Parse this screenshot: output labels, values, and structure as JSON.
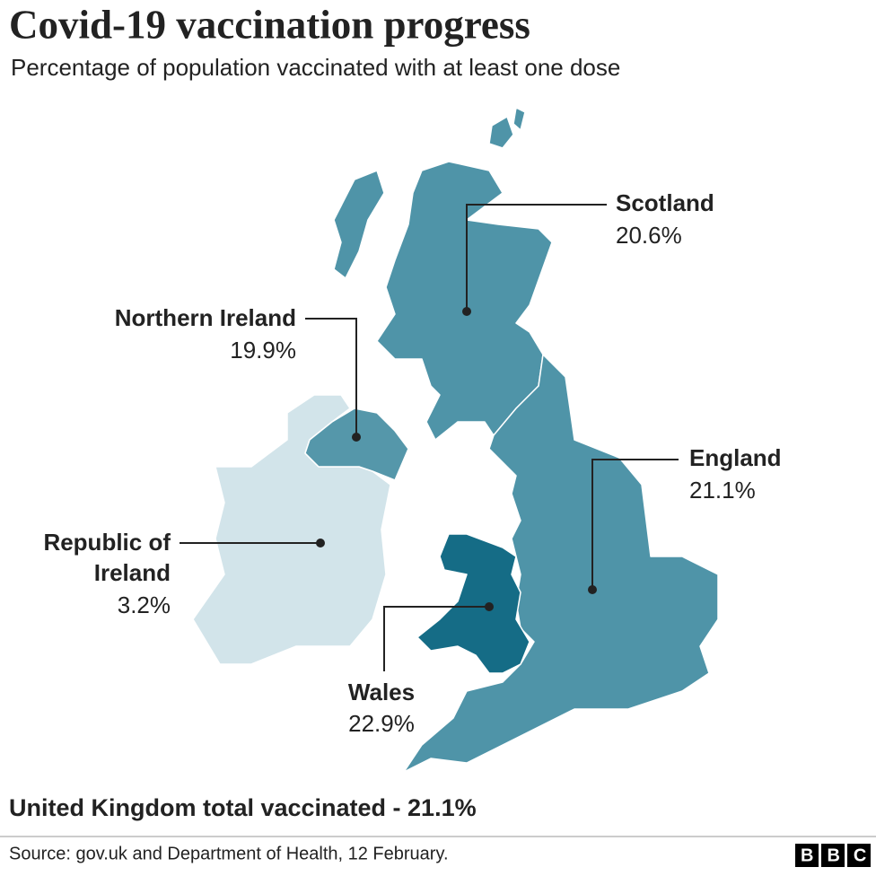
{
  "title": "Covid-19 vaccination progress",
  "subtitle": "Percentage of population vaccinated with at least one dose",
  "regions": [
    {
      "name": "Scotland",
      "value_label": "20.6%",
      "color": "#4f94a8"
    },
    {
      "name": "Northern Ireland",
      "value_label": "19.9%",
      "color": "#5597aa"
    },
    {
      "name": "England",
      "value_label": "21.1%",
      "color": "#4f94a8"
    },
    {
      "name": [
        "Republic of",
        "Ireland"
      ],
      "value_label": "3.2%",
      "color": "#d2e4ea"
    },
    {
      "name": "Wales",
      "value_label": "22.9%",
      "color": "#156c86"
    }
  ],
  "footer": "United Kingdom total vaccinated - 21.1%",
  "source": "Source: gov.uk and Department of Health, 12 February.",
  "logo": "BBC"
}
